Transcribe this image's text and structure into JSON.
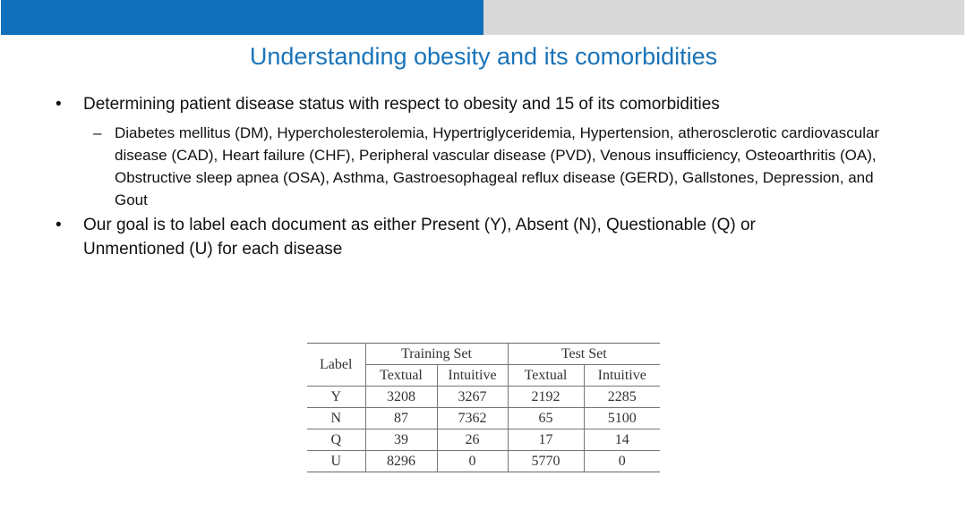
{
  "header": {
    "accent_color": "#1070bb",
    "secondary_color": "#d9d9d9"
  },
  "title": "Understanding obesity and its comorbidities",
  "bullets": [
    {
      "text": "Determining patient disease status with respect to obesity and 15 of its comorbidities",
      "sub": "Diabetes mellitus (DM), Hypercholesterolemia, Hypertriglyceridemia, Hypertension, atherosclerotic cardiovascular disease (CAD), Heart failure (CHF), Peripheral vascular disease (PVD), Venous insufficiency, Osteoarthritis (OA), Obstructive sleep apnea (OSA), Asthma, Gastroesophageal reflux disease (GERD), Gallstones, Depression, and Gout"
    },
    {
      "text": "Our goal is to label each document as either Present (Y), Absent (N), Questionable (Q) or Unmentioned (U) for each disease"
    }
  ],
  "table": {
    "label_header": "Label",
    "groups": [
      "Training Set",
      "Test Set"
    ],
    "subheaders": [
      "Textual",
      "Intuitive",
      "Textual",
      "Intuitive"
    ],
    "rows": [
      {
        "label": "Y",
        "values": [
          "3208",
          "3267",
          "2192",
          "2285"
        ]
      },
      {
        "label": "N",
        "values": [
          "87",
          "7362",
          "65",
          "5100"
        ]
      },
      {
        "label": "Q",
        "values": [
          "39",
          "26",
          "17",
          "14"
        ]
      },
      {
        "label": "U",
        "values": [
          "8296",
          "0",
          "5770",
          "0"
        ]
      }
    ]
  }
}
